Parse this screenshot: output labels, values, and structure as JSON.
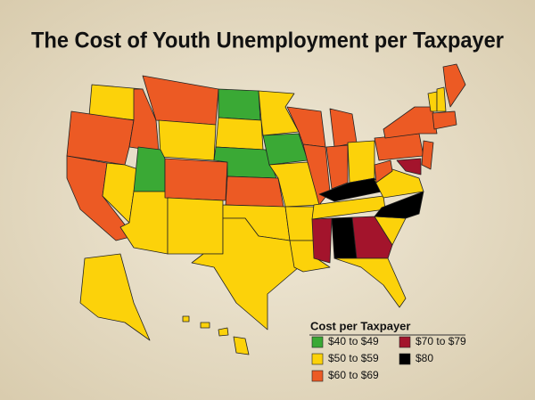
{
  "title": "The Cost of Youth Unemployment per Taxpayer",
  "legend": {
    "title": "Cost per Taxpayer",
    "items": [
      {
        "label": "$40 to $49",
        "color": "#3aa935"
      },
      {
        "label": "$50 to $59",
        "color": "#fcd20a"
      },
      {
        "label": "$60 to $69",
        "color": "#ec5a24"
      },
      {
        "label": "$70 to $79",
        "color": "#a3142c"
      },
      {
        "label": "$80",
        "color": "#000000"
      }
    ]
  }
}
